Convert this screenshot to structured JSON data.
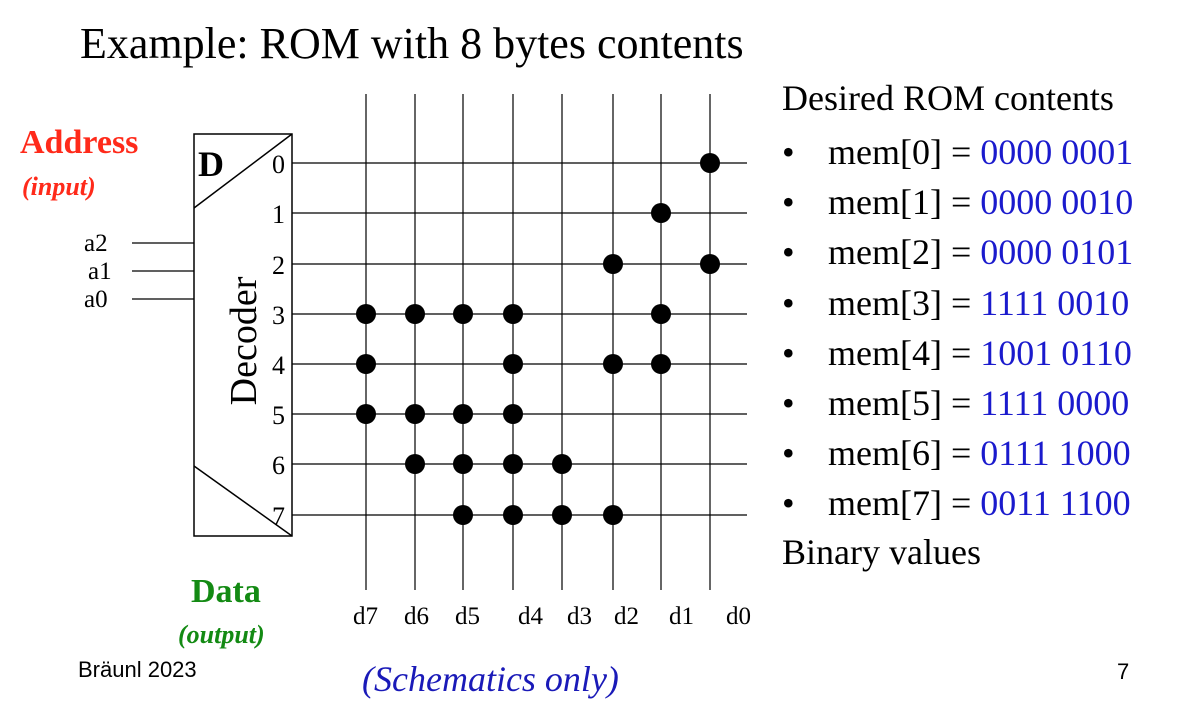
{
  "title": "Example: ROM with 8 bytes contents",
  "address_label": "Address",
  "address_sublabel": "(input)",
  "data_label": "Data",
  "data_sublabel": "(output)",
  "decoder": {
    "corner_label": "D",
    "label": "Decoder",
    "inputs": [
      "a2",
      "a1",
      "a0"
    ],
    "outputs": [
      "0",
      "1",
      "2",
      "3",
      "4",
      "5",
      "6",
      "7"
    ]
  },
  "data_lines": [
    "d7",
    "d6",
    "d5",
    "d4",
    "d3",
    "d2",
    "d1",
    "d0"
  ],
  "rom": {
    "heading": "Desired ROM contents",
    "bullet": "•",
    "entries": [
      {
        "label": "mem[0] = ",
        "value": "0000 0001"
      },
      {
        "label": "mem[1] = ",
        "value": "0000 0010"
      },
      {
        "label": "mem[2] = ",
        "value": "0000 0101"
      },
      {
        "label": "mem[3] = ",
        "value": "1111 0010"
      },
      {
        "label": "mem[4] = ",
        "value": "1001 0110"
      },
      {
        "label": "mem[5] = ",
        "value": "1111 0000"
      },
      {
        "label": "mem[6] = ",
        "value": "0111 1000"
      },
      {
        "label": "mem[7] = ",
        "value": "0011 1100"
      }
    ],
    "footer": "Binary values"
  },
  "footer_left": "Bräunl 2023",
  "footer_center": "(Schematics only)",
  "page_number": "7",
  "colors": {
    "address": "#ff2a1a",
    "data": "#138a13",
    "value": "#1a1acd",
    "footer_center": "#1a1ab8"
  }
}
